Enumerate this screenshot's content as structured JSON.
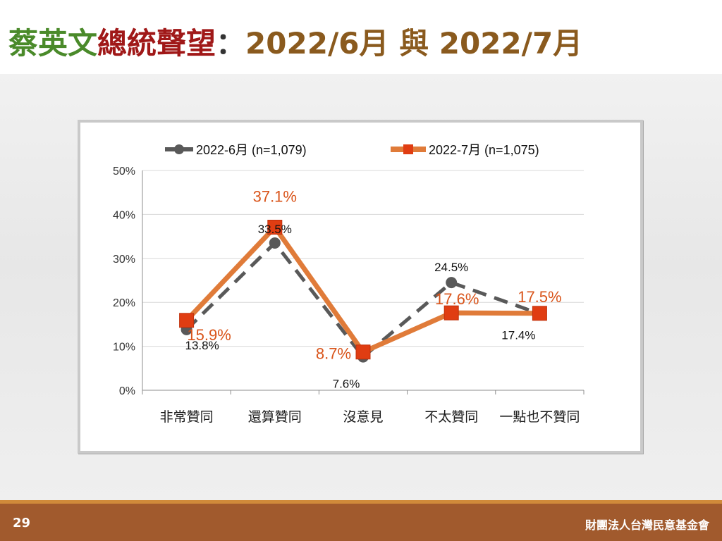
{
  "slide": {
    "title_part1": "蔡英文",
    "title_part2": "總統聲望",
    "title_part3": "：",
    "title_part4": "2022/6月 與 2022/7月",
    "page_number": "29",
    "organization": "財團法人台灣民意基金會"
  },
  "colors": {
    "title_green": "#4a8a2a",
    "title_red": "#a01818",
    "title_brown": "#8a5a1e",
    "series_june": "#595959",
    "series_july": "#e07b39",
    "series_july_marker": "#e03d12",
    "label_july": "#d9541a",
    "footer": "#a15a2d"
  },
  "chart_data": {
    "type": "line",
    "categories": [
      "非常贊同",
      "還算贊同",
      "沒意見",
      "不太贊同",
      "一點也不贊同"
    ],
    "ylim": [
      0,
      50
    ],
    "yticks": [
      "0%",
      "10%",
      "20%",
      "30%",
      "40%",
      "50%"
    ],
    "grid": true,
    "legend_position": "top",
    "series": [
      {
        "name": "2022-6月  (n=1,079)",
        "values": [
          13.8,
          33.5,
          7.6,
          24.5,
          17.4
        ],
        "labels": [
          "13.8%",
          "33.5%",
          "7.6%",
          "24.5%",
          "17.4%"
        ],
        "style": "dashed",
        "marker": "circle"
      },
      {
        "name": "2022-7月  (n=1,075)",
        "values": [
          15.9,
          37.1,
          8.7,
          17.6,
          17.5
        ],
        "labels": [
          "15.9%",
          "37.1%",
          "8.7%",
          "17.6%",
          "17.5%"
        ],
        "style": "solid",
        "marker": "square"
      }
    ]
  }
}
